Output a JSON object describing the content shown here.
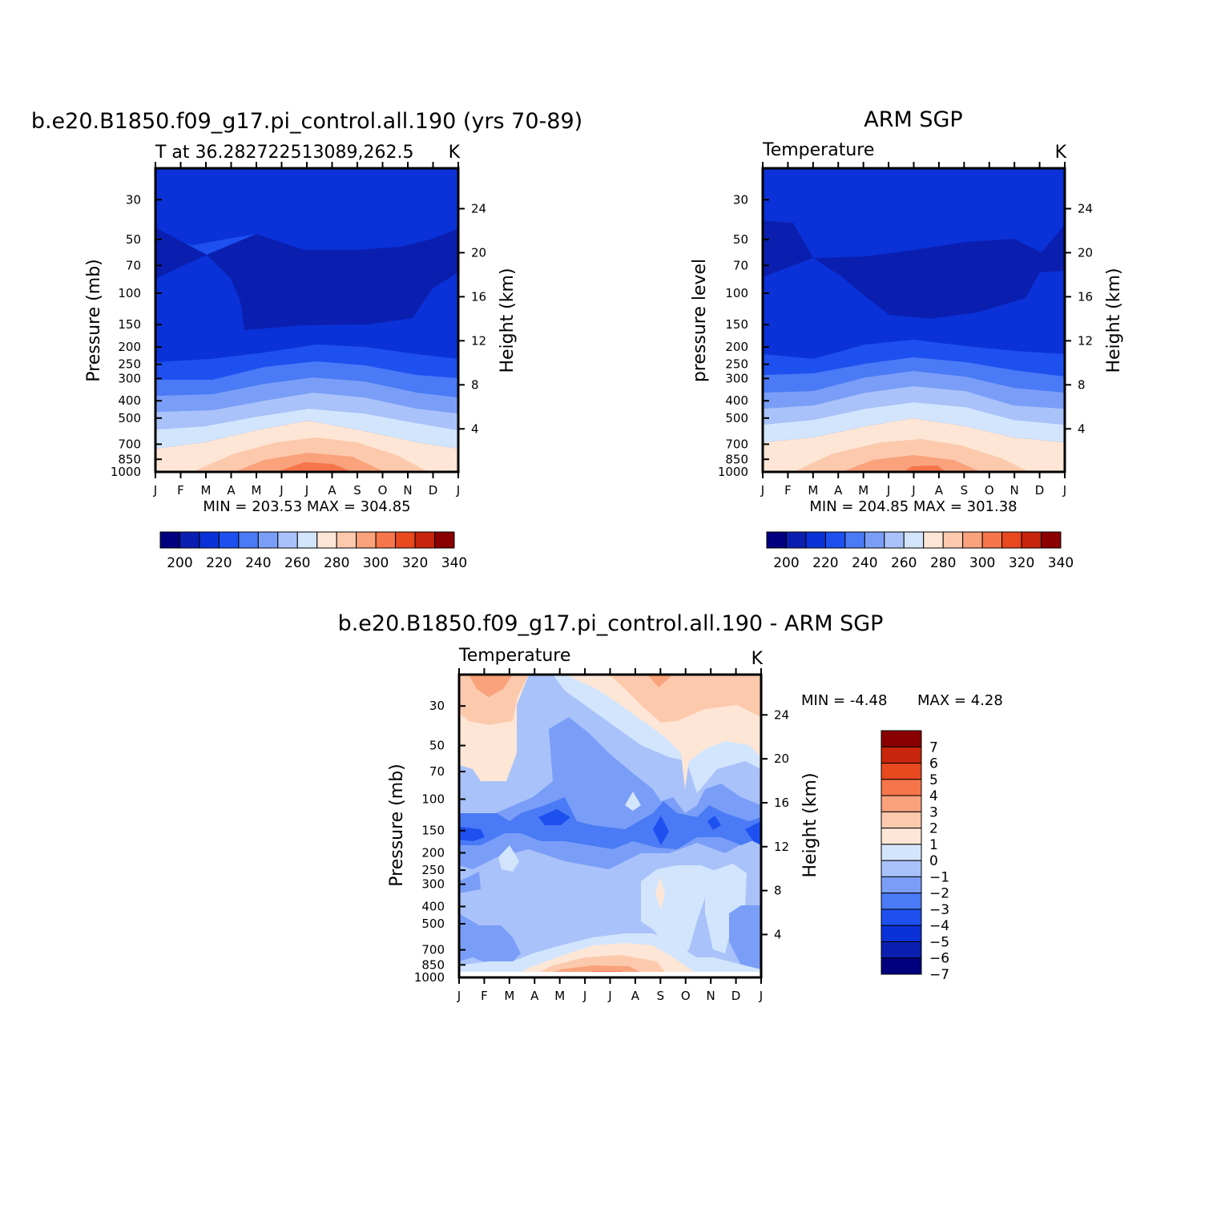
{
  "palette": {
    "temp_colors": [
      "#00007f",
      "#0a1fb0",
      "#0a32d8",
      "#1e50f0",
      "#4a7af5",
      "#7a9ef7",
      "#a9c2fa",
      "#d3e5fc",
      "#fde6d6",
      "#fcc9ad",
      "#f9a27c",
      "#f6754a",
      "#e9491f",
      "#c7250c",
      "#8a0000"
    ],
    "diff_colors": [
      "#00007f",
      "#0a1fb0",
      "#0a32d8",
      "#1e50f0",
      "#4a7af5",
      "#7a9ef7",
      "#a9c2fa",
      "#d3e5fc",
      "#fde6d6",
      "#fcc9ad",
      "#f9a27c",
      "#f6754a",
      "#e9491f",
      "#c7250c",
      "#8a0000"
    ]
  },
  "panels": {
    "model": {
      "title": "b.e20.B1850.f09_g17.pi_control.all.190 (yrs 70-89)",
      "left_label": "T at 36.282722513089,262.5",
      "right_label": "K",
      "ylabel": "Pressure (mb)",
      "ylabel_right": "Height (km)",
      "stats": "MIN = 203.53 MAX = 304.85"
    },
    "obs": {
      "title": "ARM SGP",
      "left_label": "Temperature",
      "right_label": "K",
      "ylabel": "pressure level",
      "ylabel_right": "Height (km)",
      "stats": "MIN = 204.85 MAX = 301.38"
    },
    "diff": {
      "title": "b.e20.B1850.f09_g17.pi_control.all.190 - ARM SGP",
      "left_label": "Temperature",
      "right_label": "K",
      "ylabel": "Pressure (mb)",
      "ylabel_right": "Height (km)",
      "stats_min": "MIN =   -4.48",
      "stats_max": "MAX =    4.28"
    }
  },
  "chart_data": [
    {
      "type": "heatmap",
      "title": "b.e20.B1850.f09_g17.pi_control.all.190 (yrs 70-89)",
      "x_tick_labels": [
        "J",
        "F",
        "M",
        "A",
        "M",
        "J",
        "J",
        "A",
        "S",
        "O",
        "N",
        "D",
        "J"
      ],
      "y_tick_labels": [
        "30",
        "50",
        "70",
        "100",
        "150",
        "200",
        "250",
        "300",
        "400",
        "500",
        "700",
        "850",
        "1000"
      ],
      "y_right_tick_labels": [
        "24",
        "20",
        "16",
        "12",
        "8",
        "4"
      ],
      "ylim": [
        1000,
        20
      ],
      "colorbar_ticks": [
        "200",
        "220",
        "240",
        "260",
        "280",
        "300",
        "320",
        "340"
      ],
      "values_min": 203.53,
      "values_max": 304.85,
      "approx_profile_K": {
        "30": 222,
        "50": 215,
        "70": 212,
        "100": 213,
        "150": 214,
        "200": 218,
        "250": 224,
        "300": 230,
        "400": 245,
        "500": 258,
        "700": 275,
        "850": 288,
        "1000": 296
      }
    },
    {
      "type": "heatmap",
      "title": "ARM SGP",
      "x_tick_labels": [
        "J",
        "F",
        "M",
        "A",
        "M",
        "J",
        "J",
        "A",
        "S",
        "O",
        "N",
        "D",
        "J"
      ],
      "y_tick_labels": [
        "30",
        "50",
        "70",
        "100",
        "150",
        "200",
        "250",
        "300",
        "400",
        "500",
        "700",
        "850",
        "1000"
      ],
      "y_right_tick_labels": [
        "24",
        "20",
        "16",
        "12",
        "8",
        "4"
      ],
      "ylim": [
        1000,
        20
      ],
      "colorbar_ticks": [
        "200",
        "220",
        "240",
        "260",
        "280",
        "300",
        "320",
        "340"
      ],
      "values_min": 204.85,
      "values_max": 301.38,
      "approx_profile_K": {
        "30": 222,
        "50": 216,
        "70": 213,
        "100": 212,
        "150": 214,
        "200": 218,
        "250": 224,
        "300": 231,
        "400": 246,
        "500": 258,
        "700": 275,
        "850": 287,
        "1000": 294
      }
    },
    {
      "type": "heatmap",
      "title": "b.e20.B1850.f09_g17.pi_control.all.190 - ARM SGP",
      "x_tick_labels": [
        "J",
        "F",
        "M",
        "A",
        "M",
        "J",
        "J",
        "A",
        "S",
        "O",
        "N",
        "D",
        "J"
      ],
      "y_tick_labels": [
        "30",
        "50",
        "70",
        "100",
        "150",
        "200",
        "250",
        "300",
        "400",
        "500",
        "700",
        "850",
        "1000"
      ],
      "y_right_tick_labels": [
        "24",
        "20",
        "16",
        "12",
        "8",
        "4"
      ],
      "ylim": [
        1000,
        20
      ],
      "colorbar_ticks": [
        "7",
        "6",
        "5",
        "4",
        "3",
        "2",
        "1",
        "0",
        "−1",
        "−2",
        "−3",
        "−4",
        "−5",
        "−6",
        "−7"
      ],
      "values_min": -4.48,
      "values_max": 4.28
    }
  ]
}
